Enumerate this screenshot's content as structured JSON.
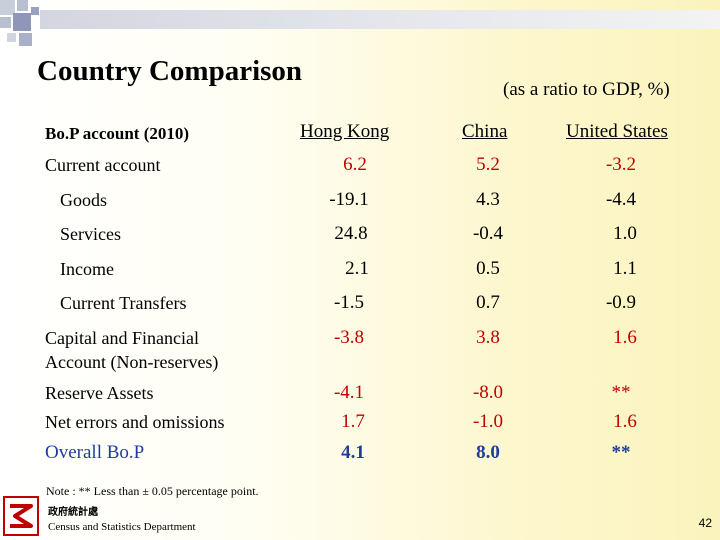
{
  "title": "Country Comparison",
  "ratio_note": "(as a ratio to GDP, %)",
  "table_header": {
    "label": "Bo.P account (2010)",
    "columns": [
      "Hong Kong",
      "China",
      "United States"
    ]
  },
  "rows": [
    {
      "label": "Current account",
      "values": [
        "6.2",
        "5.2",
        "-3.2"
      ]
    },
    {
      "label": "Goods",
      "values": [
        "-19.1",
        "4.3",
        "-4.4"
      ]
    },
    {
      "label": "Services",
      "values": [
        "24.8",
        "-0.4",
        "1.0"
      ]
    },
    {
      "label": "Income",
      "values": [
        "2.1",
        "0.5",
        "1.1"
      ]
    },
    {
      "label": "Current Transfers",
      "values": [
        "-1.5",
        "0.7",
        "-0.9"
      ]
    },
    {
      "label": "Capital and Financial Account (Non-reserves)",
      "values": [
        "-3.8",
        "3.8",
        "1.6"
      ]
    },
    {
      "label": "Reserve Assets",
      "values": [
        "-4.1",
        "-8.0",
        "**"
      ]
    },
    {
      "label": "Net errors and omissions",
      "values": [
        "1.7",
        "-1.0",
        "1.6"
      ]
    },
    {
      "label": "Overall Bo.P",
      "values": [
        "4.1",
        "8.0",
        "**"
      ]
    }
  ],
  "note": "Note :   ** Less than ± 0.05 percentage point.",
  "department": {
    "chinese_name": "政府統計處",
    "english_name": "Census and Statistics Department"
  },
  "page_number": "42",
  "colors": {
    "value_red": "#c00000",
    "overall_blue": "#1f3c99"
  }
}
